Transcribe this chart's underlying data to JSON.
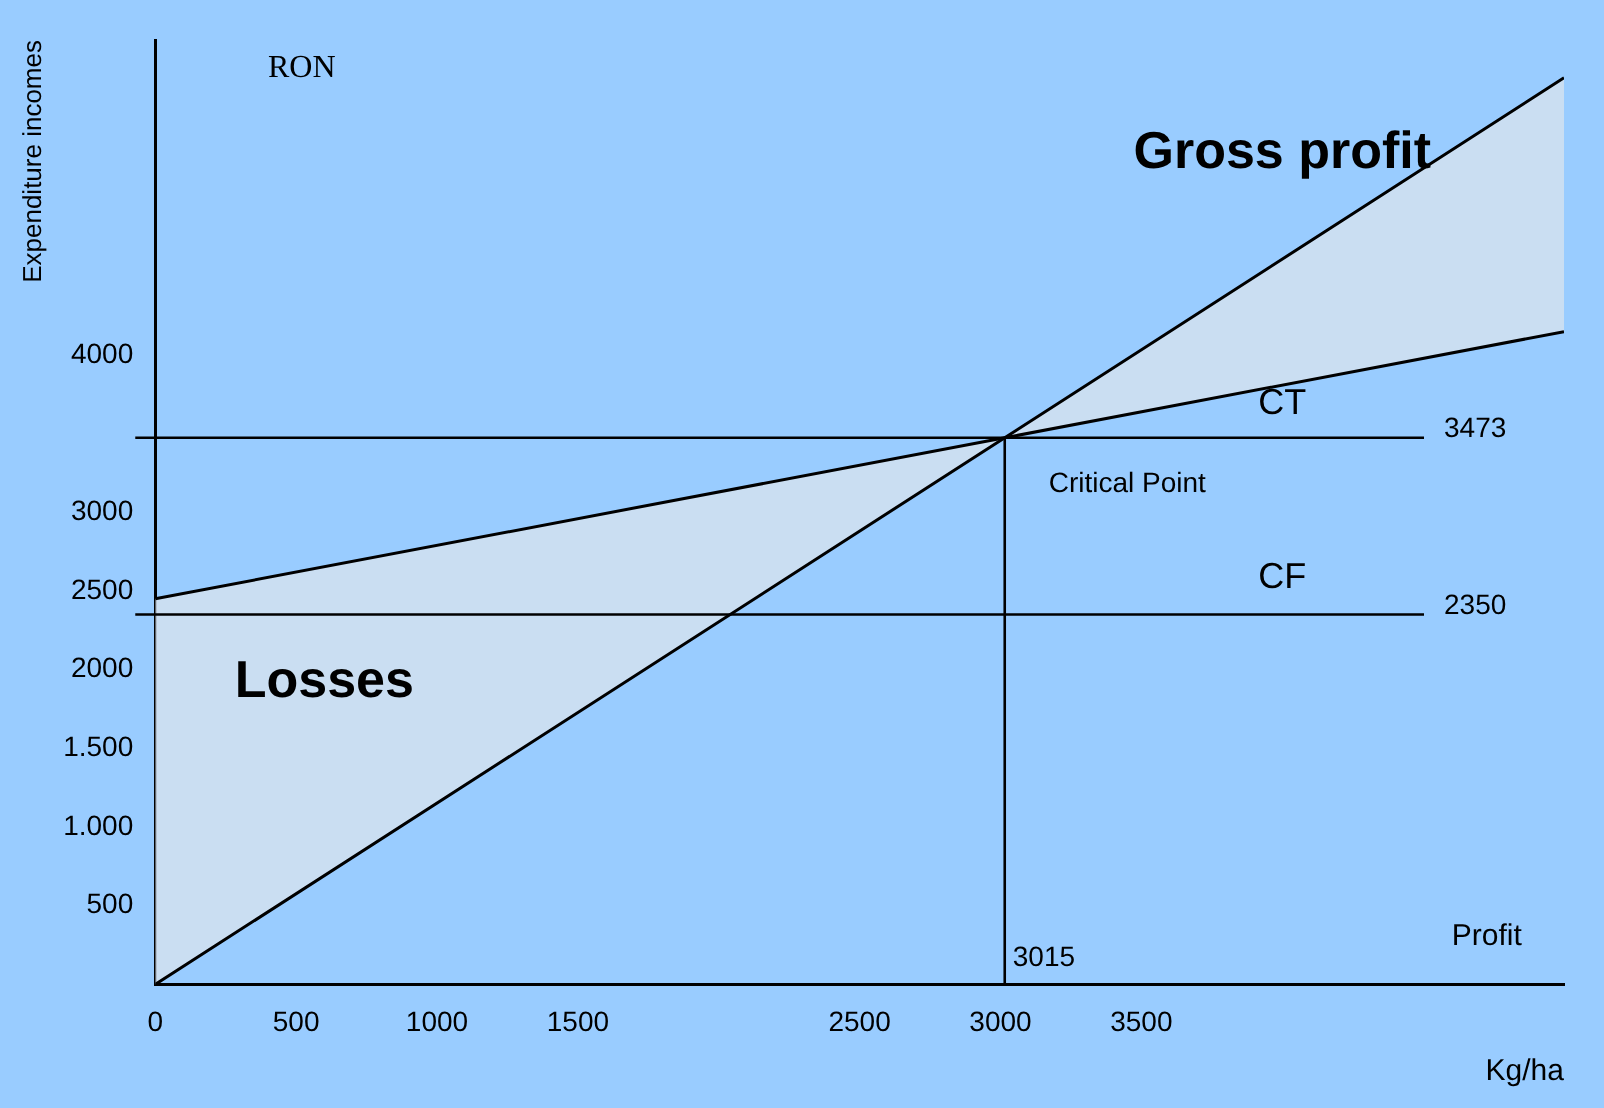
{
  "chart_data": {
    "type": "line",
    "xlabel": "Kg/ha",
    "ylabel": "Expenditure incomes",
    "xlim": [
      0,
      5000
    ],
    "ylim": [
      0,
      6000
    ],
    "xticks": [
      0,
      500,
      1000,
      1500,
      2500,
      3000,
      3500
    ],
    "yticks": [
      500,
      {
        "value": 1000,
        "label": "1.000"
      },
      {
        "value": 1500,
        "label": "1.500"
      },
      2000,
      2500,
      3000,
      4000
    ],
    "series": [
      {
        "color": "#000000",
        "x": [
          0,
          3015,
          5000
        ],
        "values": [
          0,
          3473,
          5760
        ]
      },
      {
        "color": "#000000",
        "x": [
          0,
          3015,
          5000
        ],
        "values": [
          2450,
          3473,
          4147
        ]
      }
    ],
    "ref_lines": [
      {
        "axis": "y",
        "value": 3473,
        "label": "3473",
        "color": "#000000"
      },
      {
        "axis": "y",
        "value": 2350,
        "label": "2350",
        "color": "#000000"
      },
      {
        "axis": "x",
        "value": 3015,
        "label": "3015",
        "color": "#000000"
      }
    ],
    "annotations": [
      "RON",
      "Profit",
      "Losses",
      "Gross profit",
      "Critical Point",
      "CT",
      "CF"
    ],
    "grid": false,
    "legend": false,
    "marker": "none",
    "line_style": "solid"
  }
}
